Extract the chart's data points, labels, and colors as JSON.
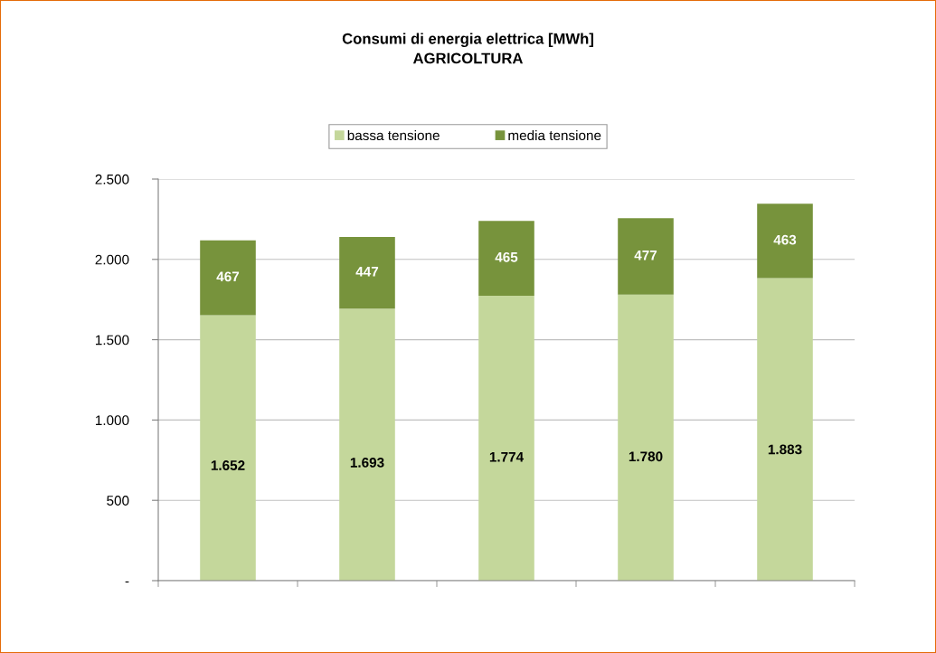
{
  "chart_data": {
    "type": "bar",
    "title": "Consumi di energia elettrica [MWh]\nAGRICOLTURA",
    "categories": [
      null,
      null,
      null,
      null,
      null
    ],
    "stacked": true,
    "series": [
      {
        "name": "bassa tensione",
        "color": "#c4d79b",
        "values": [
          1652,
          1693,
          1774,
          1780,
          1883
        ],
        "value_labels": [
          "1.652",
          "1.693",
          "1.774",
          "1.780",
          "1.883"
        ]
      },
      {
        "name": "media tensione",
        "color": "#77933c",
        "values": [
          467,
          447,
          465,
          477,
          463
        ],
        "value_labels": [
          "467",
          "447",
          "465",
          "477",
          "463"
        ]
      }
    ],
    "ylim": [
      0,
      2500
    ],
    "yticks": [
      {
        "value": 0,
        "label": "-"
      },
      500,
      {
        "value": 1000,
        "label": "1.000"
      },
      {
        "value": 1500,
        "label": "1.500"
      },
      {
        "value": 2000,
        "label": "2.000"
      },
      {
        "value": 2500,
        "label": "2.500"
      }
    ],
    "grid": "y",
    "legend": "top"
  }
}
